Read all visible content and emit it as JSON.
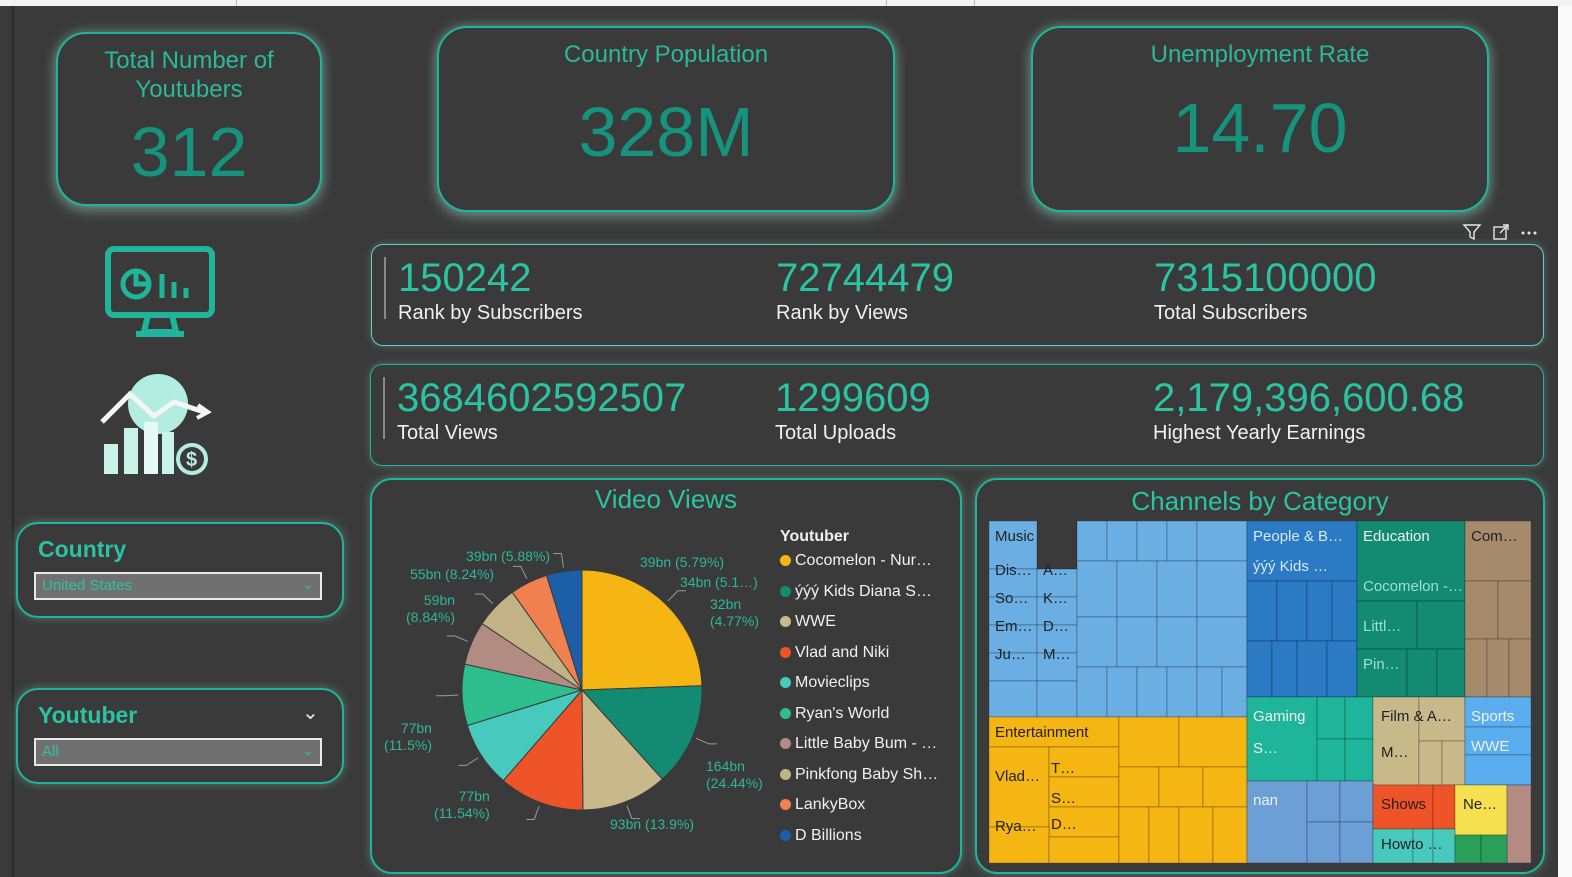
{
  "cards": {
    "youtubers": {
      "title": "Total Number of Youtubers",
      "value": "312"
    },
    "population": {
      "title": "Country Population",
      "value": "328M"
    },
    "unemployment": {
      "title": "Unemployment Rate",
      "value": "14.70"
    }
  },
  "kpis_row1": [
    {
      "value": "150242",
      "label": "Rank by Subscribers"
    },
    {
      "value": "72744479",
      "label": "Rank by Views"
    },
    {
      "value": "7315100000",
      "label": "Total Subscribers"
    }
  ],
  "kpis_row2": [
    {
      "value": "3684602592507",
      "label": "Total Views"
    },
    {
      "value": "1299609",
      "label": "Total Uploads"
    },
    {
      "value": "2,179,396,600.68",
      "label": "Highest Yearly Earnings"
    }
  ],
  "slicers": {
    "country": {
      "title": "Country",
      "value": "United States"
    },
    "youtuber": {
      "title": "Youtuber",
      "value": "All"
    }
  },
  "visual_header_icons": [
    "filter-icon",
    "focus-mode-icon",
    "more-options-icon"
  ],
  "video_views": {
    "title": "Video Views",
    "legend_title": "Youtuber",
    "legend": [
      {
        "name": "Cocomelon - Nur…",
        "color": "#f5b513"
      },
      {
        "name": "ýýý Kids Diana S…",
        "color": "#138a72"
      },
      {
        "name": "WWE",
        "color": "#c9b98a"
      },
      {
        "name": "Vlad and Niki",
        "color": "#ee5428"
      },
      {
        "name": "Movieclips",
        "color": "#47c9bd"
      },
      {
        "name": "Ryan's World",
        "color": "#2ebd8c"
      },
      {
        "name": "Little Baby Bum - …",
        "color": "#b28c82"
      },
      {
        "name": "Pinkfong Baby Sh…",
        "color": "#c2b386"
      },
      {
        "name": "LankyBox",
        "color": "#f08050"
      },
      {
        "name": "D Billions",
        "color": "#1c5fa8"
      }
    ],
    "slice_labels": [
      {
        "line1": "164bn",
        "line2": "(24.44%)"
      },
      {
        "line1": "93bn (13.9%)",
        "line2": ""
      },
      {
        "line1": "77bn",
        "line2": "(11.54%)"
      },
      {
        "line1": "77bn",
        "line2": "(11.5%)"
      },
      {
        "line1": "59bn",
        "line2": "(8.84%)"
      },
      {
        "line1": "55bn (8.24%)",
        "line2": ""
      },
      {
        "line1": "39bn (5.88%)",
        "line2": ""
      },
      {
        "line1": "39bn (5.79%)",
        "line2": ""
      },
      {
        "line1": "34bn (5.1…)",
        "line2": ""
      },
      {
        "line1": "32bn",
        "line2": "(4.77%)"
      }
    ]
  },
  "treemap": {
    "title": "Channels by Category",
    "labels": {
      "music": "Music",
      "dis": "Dis…",
      "a": "A…",
      "so": "So…",
      "k": "K…",
      "em": "Em…",
      "d": "D…",
      "ju": "Ju…",
      "m": "M…",
      "people": "People & B…",
      "kids": "ýýý Kids …",
      "education": "Education",
      "cocomelon": "Cocomelon -…",
      "littl": "Littl…",
      "pin": "Pin…",
      "com": "Com…",
      "entertainment": "Entertainment",
      "t": "T…",
      "vlad": "Vlad…",
      "s": "S…",
      "rya": "Rya…",
      "d2": "D…",
      "gaming": "Gaming",
      "s2": "S…",
      "film": "Film & A…",
      "m2": "M…",
      "sports": "Sports",
      "wwe": "WWE",
      "nan": "nan",
      "shows": "Shows",
      "ne": "Ne…",
      "howto": "Howto …"
    }
  },
  "chart_data": {
    "type": "pie",
    "title": "Video Views",
    "legend_title": "Youtuber",
    "legend_position": "right",
    "series": [
      {
        "name": "Cocomelon - Nur…",
        "value_bn": 164,
        "percent": 24.44
      },
      {
        "name": "ýýý Kids Diana S…",
        "value_bn": 93,
        "percent": 13.9
      },
      {
        "name": "WWE",
        "value_bn": 77,
        "percent": 11.54
      },
      {
        "name": "Vlad and Niki",
        "value_bn": 77,
        "percent": 11.5
      },
      {
        "name": "Movieclips",
        "value_bn": 59,
        "percent": 8.84
      },
      {
        "name": "Ryan's World",
        "value_bn": 55,
        "percent": 8.24
      },
      {
        "name": "Little Baby Bum - …",
        "value_bn": 39,
        "percent": 5.88
      },
      {
        "name": "Pinkfong Baby Sh…",
        "value_bn": 39,
        "percent": 5.79
      },
      {
        "name": "LankyBox",
        "value_bn": 34,
        "percent": 5.1
      },
      {
        "name": "D Billions",
        "value_bn": 32,
        "percent": 4.77
      }
    ]
  }
}
